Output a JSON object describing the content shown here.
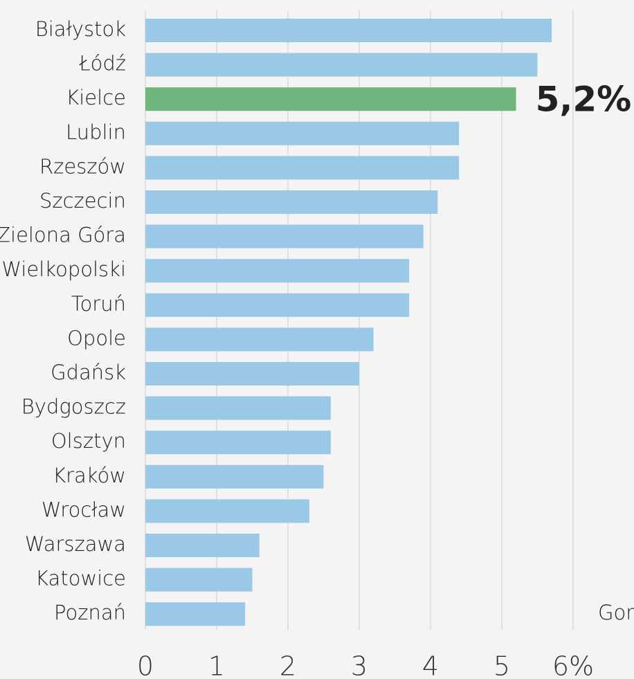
{
  "chart_data": {
    "type": "hbar",
    "categories": [
      "Białystok",
      "Łódź",
      "Kielce",
      "Lublin",
      "Rzeszów",
      "Szczecin",
      "Zielona Góra",
      "Gorzów Wielkopolski",
      "Toruń",
      "Opole",
      "Gdańsk",
      "Bydgoszcz",
      "Olsztyn",
      "Kraków",
      "Wrocław",
      "Warszawa",
      "Katowice",
      "Poznań"
    ],
    "values": [
      5.7,
      5.5,
      5.2,
      4.4,
      4.4,
      4.1,
      3.9,
      3.7,
      3.7,
      3.2,
      3.0,
      2.6,
      2.6,
      2.5,
      2.3,
      1.6,
      1.5,
      1.4
    ],
    "value_labels": [
      null,
      null,
      "5,2%",
      null,
      null,
      null,
      null,
      null,
      null,
      null,
      null,
      null,
      null,
      null,
      null,
      null,
      null,
      null
    ],
    "colors": [
      "#9ac9e8",
      "#9ac9e8",
      "#70b67f",
      "#9ac9e8",
      "#9ac9e8",
      "#9ac9e8",
      "#9ac9e8",
      "#9ac9e8",
      "#9ac9e8",
      "#9ac9e8",
      "#9ac9e8",
      "#9ac9e8",
      "#9ac9e8",
      "#9ac9e8",
      "#9ac9e8",
      "#9ac9e8",
      "#9ac9e8",
      "#9ac9e8"
    ],
    "xlim": [
      0,
      6
    ],
    "xticks": [
      0,
      1,
      2,
      3,
      4,
      5,
      {
        "value": 6,
        "label": "6%"
      }
    ],
    "grid": true,
    "annotation": "Gor"
  }
}
